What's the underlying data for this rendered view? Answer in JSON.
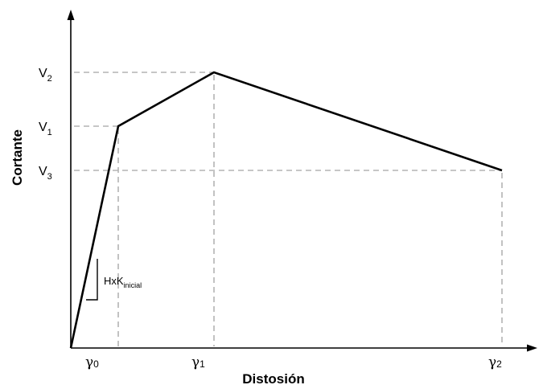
{
  "x_axis": {
    "title": "Distosión"
  },
  "y_axis": {
    "title": "Cortante"
  },
  "y_levels": [
    {
      "symbol": "V",
      "subscript": "2"
    },
    {
      "symbol": "V",
      "subscript": "1"
    },
    {
      "symbol": "V",
      "subscript": "3"
    }
  ],
  "x_levels": [
    {
      "symbol": "γ",
      "subscript": "0"
    },
    {
      "symbol": "γ",
      "subscript": "1"
    },
    {
      "symbol": "γ",
      "subscript": "2"
    }
  ],
  "slope_annotation": {
    "text": "HxK",
    "subscript": "inicial"
  },
  "colors": {
    "curve": "#000000",
    "guides": "#b3b3b3",
    "axes": "#000000"
  }
}
